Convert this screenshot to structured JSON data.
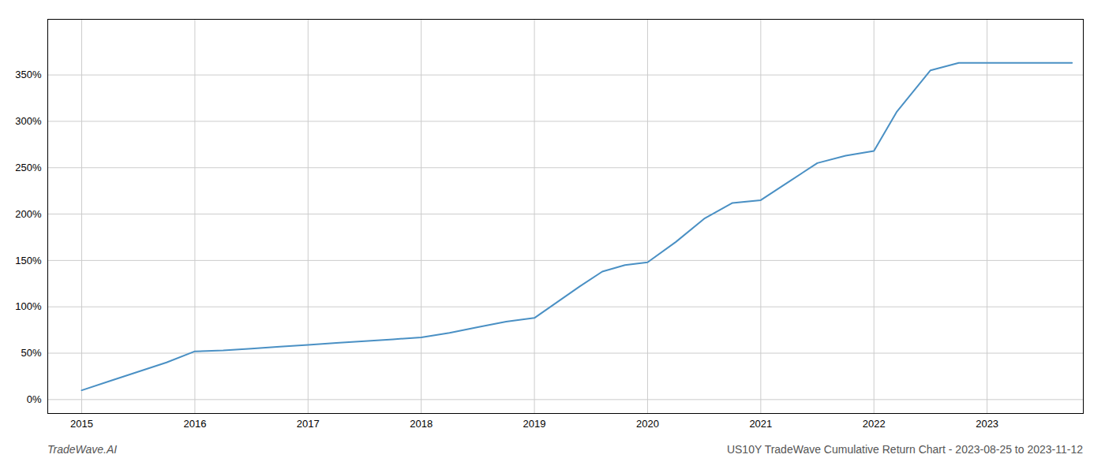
{
  "chart_data": {
    "type": "line",
    "title": "US10Y TradeWave Cumulative Return Chart - 2023-08-25 to 2023-11-12",
    "caption": "TradeWave.AI",
    "color": "#4a90c4",
    "grid": true,
    "x": [
      2015.0,
      2015.25,
      2015.5,
      2015.75,
      2016.0,
      2016.25,
      2016.5,
      2016.75,
      2017.0,
      2017.25,
      2017.5,
      2017.75,
      2018.0,
      2018.25,
      2018.5,
      2018.75,
      2019.0,
      2019.2,
      2019.4,
      2019.6,
      2019.8,
      2020.0,
      2020.25,
      2020.5,
      2020.75,
      2021.0,
      2021.25,
      2021.5,
      2021.75,
      2022.0,
      2022.2,
      2022.5,
      2022.75,
      2023.0,
      2023.2,
      2023.5,
      2023.75
    ],
    "values": [
      10.0,
      20.0,
      30.0,
      40.0,
      52.0,
      53.0,
      55.0,
      57.0,
      59.0,
      61.0,
      63.0,
      65.0,
      67.0,
      72.0,
      78.0,
      84.0,
      88.0,
      105.0,
      122.0,
      138.0,
      145.0,
      148.0,
      170.0,
      195.0,
      212.0,
      215.0,
      235.0,
      255.0,
      263.0,
      268.0,
      310.0,
      355.0,
      363.0,
      363.0,
      363.0,
      363.0,
      363.0
    ],
    "xlim": [
      2014.7,
      2023.85
    ],
    "xticks": [
      2015,
      2016,
      2017,
      2018,
      2019,
      2020,
      2021,
      2022,
      2023
    ],
    "ylim": [
      -15,
      410
    ],
    "yticks": [
      {
        "value": 0,
        "label": "0%"
      },
      {
        "value": 50,
        "label": "50%"
      },
      {
        "value": 100,
        "label": "100%"
      },
      {
        "value": 150,
        "label": "150%"
      },
      {
        "value": 200,
        "label": "200%"
      },
      {
        "value": 250,
        "label": "250%"
      },
      {
        "value": 300,
        "label": "300%"
      },
      {
        "value": 350,
        "label": "350%"
      }
    ]
  }
}
